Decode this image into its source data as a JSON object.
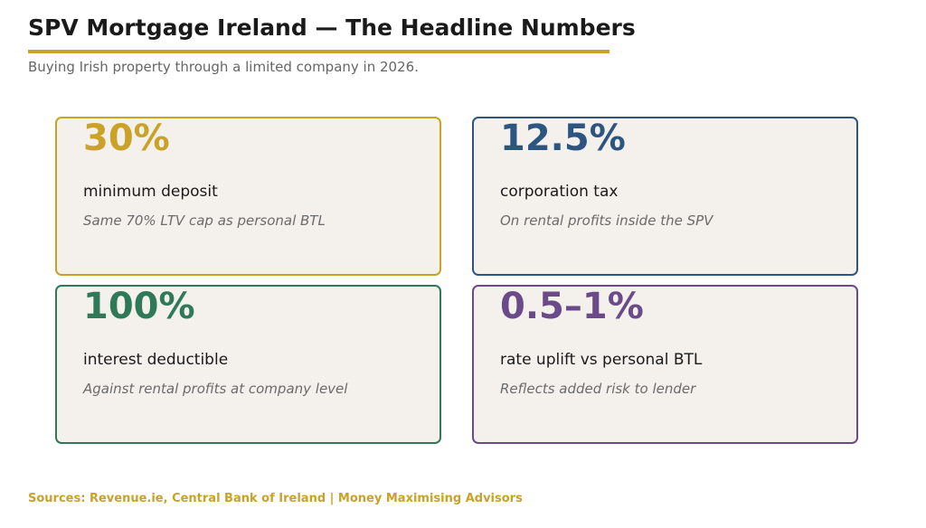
{
  "header": {
    "title": "SPV Mortgage Ireland — The Headline Numbers",
    "subtitle": "Buying Irish property through a limited company in 2026."
  },
  "colors": {
    "gold": "#c9a227",
    "blue": "#2c5582",
    "green": "#2e7a58",
    "purple": "#6b4a8a"
  },
  "cards": [
    {
      "value": "30%",
      "label": "minimum deposit",
      "note": "Same 70% LTV cap as personal BTL",
      "color": "#c9a227"
    },
    {
      "value": "12.5%",
      "label": "corporation tax",
      "note": "On rental profits inside the SPV",
      "color": "#2c5582"
    },
    {
      "value": "100%",
      "label": "interest deductible",
      "note": "Against rental profits at company level",
      "color": "#2e7a58"
    },
    {
      "value": "0.5–1%",
      "label": "rate uplift vs personal BTL",
      "note": "Reflects added risk to lender",
      "color": "#6b4a8a"
    }
  ],
  "footer": {
    "text": "Sources: Revenue.ie, Central Bank of Ireland  |  Money Maximising Advisors"
  }
}
